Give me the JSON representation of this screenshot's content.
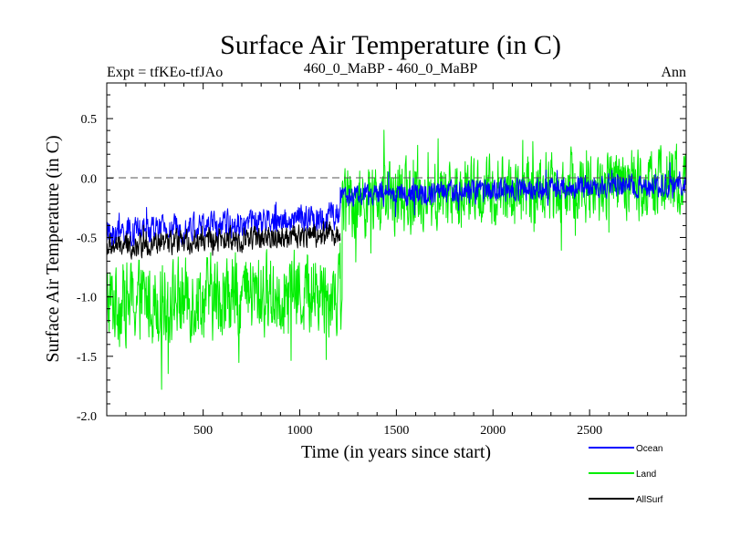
{
  "chart_data": {
    "type": "line",
    "title": "Surface Air Temperature (in C)",
    "subtitle_left": "Expt = tfKEo-tfJAo",
    "subtitle_center": "460_0_MaBP - 460_0_MaBP",
    "subtitle_right": "Ann",
    "xlabel": "Time (in years since start)",
    "ylabel": "Surface Air Temperature (in C)",
    "xlim": [
      1,
      3000
    ],
    "ylim": [
      -2.0,
      0.8
    ],
    "xticks": [
      500,
      1000,
      1500,
      2000,
      2500
    ],
    "yticks": [
      -2.0,
      -1.5,
      -1.0,
      -0.5,
      0.0,
      0.5
    ],
    "ytick_labels": [
      "-2.0",
      "-1.5",
      "-1.0",
      "-0.5",
      "0.0",
      "0.5"
    ],
    "reference_line": 0.0,
    "legend_placement": "bottom-right, below plot",
    "series": [
      {
        "name": "Ocean",
        "color": "#0000ff",
        "x_range": [
          1,
          3000
        ],
        "segments": [
          {
            "x": [
              1,
              1210
            ],
            "start_mean": -0.47,
            "end_mean": -0.32,
            "noise_amplitude": 0.12
          },
          {
            "x": [
              1210,
              3000
            ],
            "start_mean": -0.15,
            "end_mean": -0.05,
            "noise_amplitude": 0.1
          }
        ]
      },
      {
        "name": "Land",
        "color": "#00ee00",
        "x_range": [
          1,
          3000
        ],
        "segments": [
          {
            "x": [
              1,
              1220
            ],
            "start_mean": -1.05,
            "end_mean": -0.95,
            "noise_amplitude": 0.35
          },
          {
            "x": [
              1220,
              3000
            ],
            "start_mean": -0.2,
            "end_mean": -0.02,
            "noise_amplitude": 0.3
          }
        ]
      },
      {
        "name": "AllSurf",
        "color": "#000000",
        "x_range": [
          1,
          1210
        ],
        "segments": [
          {
            "x": [
              1,
              1210
            ],
            "start_mean": -0.58,
            "end_mean": -0.46,
            "noise_amplitude": 0.1
          }
        ]
      }
    ]
  }
}
